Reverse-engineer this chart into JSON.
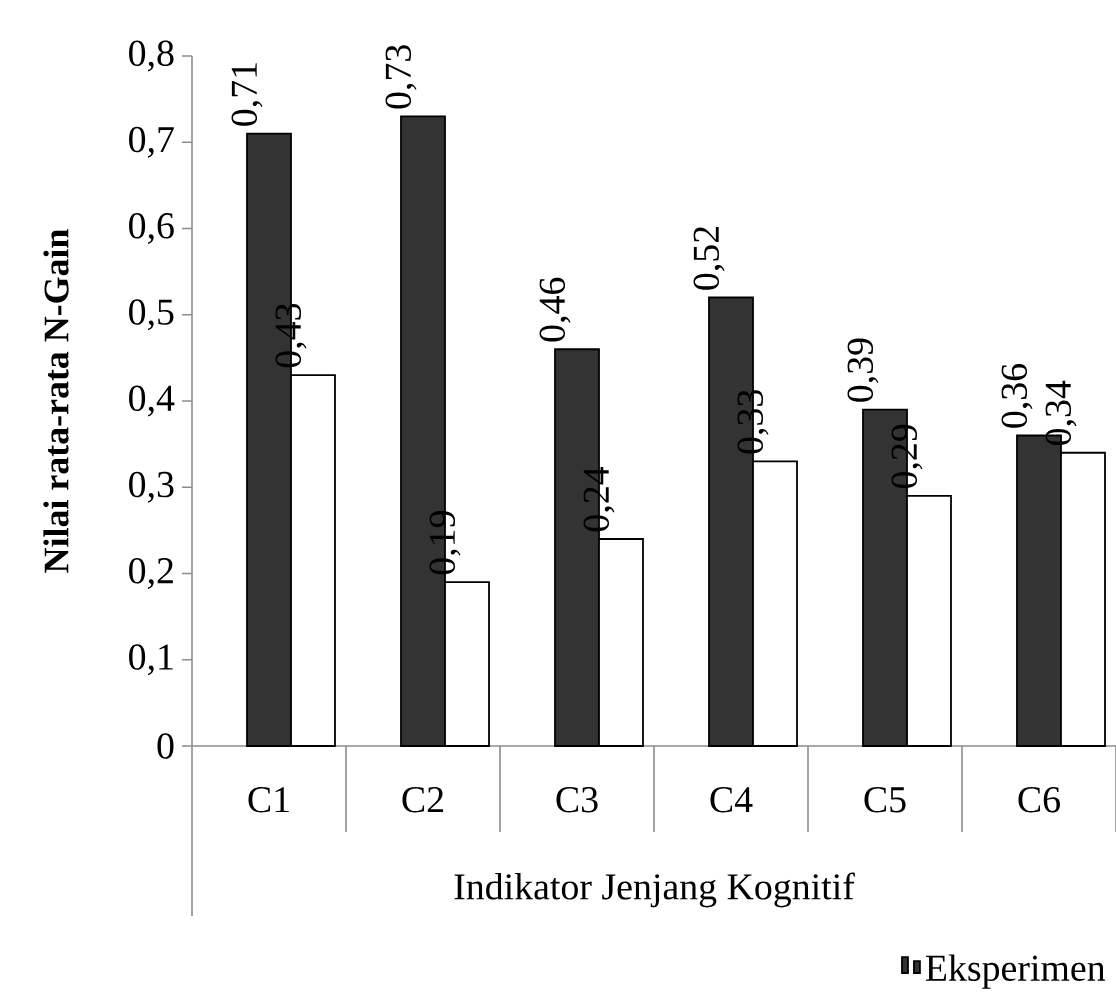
{
  "chart_data": {
    "type": "bar",
    "xlabel": "Indikator Jenjang Kognitif",
    "ylabel": "Nilai rata-rata N-Gain",
    "categories": [
      "C1",
      "C2",
      "C3",
      "C4",
      "C5",
      "C6"
    ],
    "series": [
      {
        "name": "Eksperimen",
        "color": "#333333",
        "values": [
          0.71,
          0.73,
          0.46,
          0.52,
          0.39,
          0.36
        ],
        "value_labels": [
          "0,71",
          "0,73",
          "0,46",
          "0,52",
          "0,39",
          "0,36"
        ]
      },
      {
        "color": "#ffffff",
        "values": [
          0.43,
          0.19,
          0.24,
          0.33,
          0.29,
          0.34
        ],
        "value_labels": [
          "0,43",
          "0,19",
          "0,24",
          "0,33",
          "0,29",
          "0,34"
        ]
      }
    ],
    "ylim": [
      0,
      0.8
    ],
    "yticks": [
      0,
      {
        "value": 0.1,
        "label": "0,1"
      },
      {
        "value": 0.2,
        "label": "0,2"
      },
      {
        "value": 0.3,
        "label": "0,3"
      },
      {
        "value": 0.4,
        "label": "0,4"
      },
      {
        "value": 0.5,
        "label": "0,5"
      },
      {
        "value": 0.6,
        "label": "0,6"
      },
      {
        "value": 0.7,
        "label": "0,7"
      },
      {
        "value": 0.8,
        "label": "0,8"
      }
    ],
    "legend": "bottom right"
  }
}
